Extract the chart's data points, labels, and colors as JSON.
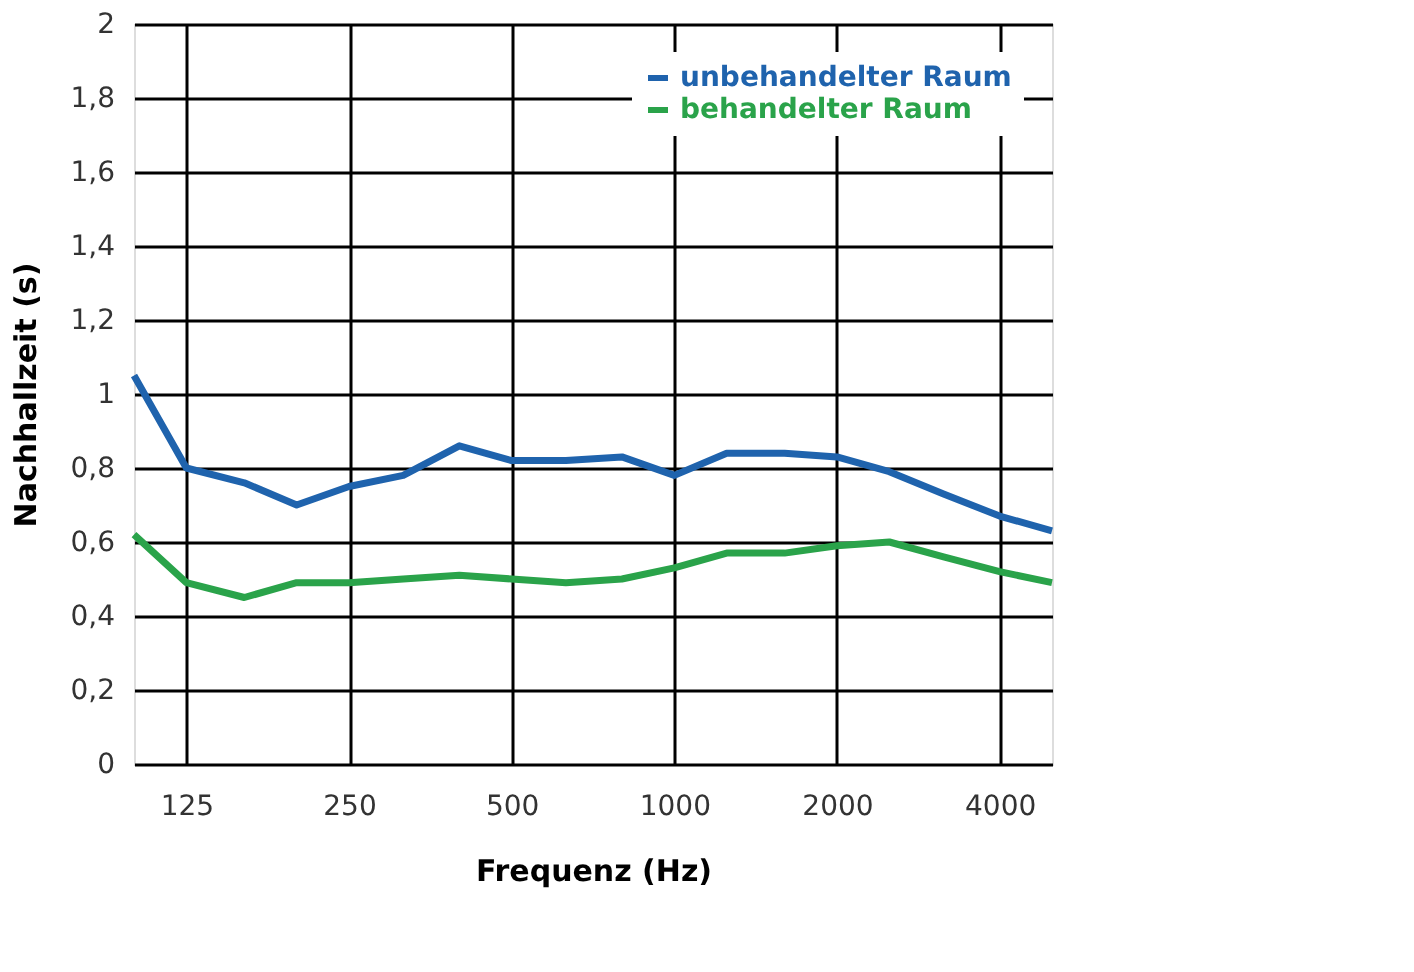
{
  "chart_data": {
    "type": "line",
    "xlabel": "Frequenz  (Hz)",
    "ylabel": "Nachhallzeit  (s)",
    "x": [
      100,
      125,
      160,
      200,
      250,
      315,
      400,
      500,
      630,
      800,
      1000,
      1250,
      1600,
      2000,
      2500,
      3150,
      4000,
      5000
    ],
    "series": [
      {
        "name": "unbehandelter Raum",
        "color": "#1f63ad",
        "values": [
          1.05,
          0.8,
          0.76,
          0.7,
          0.75,
          0.78,
          0.86,
          0.82,
          0.82,
          0.83,
          0.78,
          0.84,
          0.84,
          0.83,
          0.79,
          0.73,
          0.67,
          0.63
        ]
      },
      {
        "name": "behandelter Raum",
        "color": "#2aa34a",
        "values": [
          0.62,
          0.49,
          0.45,
          0.49,
          0.49,
          0.5,
          0.51,
          0.5,
          0.49,
          0.5,
          0.53,
          0.57,
          0.57,
          0.59,
          0.6,
          0.56,
          0.52,
          0.49
        ]
      }
    ],
    "log": "x",
    "xlim": [
      100,
      5000
    ],
    "xticks": [
      125,
      250,
      500,
      1000,
      2000,
      4000
    ],
    "ylim": [
      0,
      2
    ],
    "yticks": [
      0,
      {
        "value": 0.2,
        "label": "0,2"
      },
      {
        "value": 0.4,
        "label": "0,4"
      },
      {
        "value": 0.6,
        "label": "0,6"
      },
      {
        "value": 0.8,
        "label": "0,8"
      },
      1,
      {
        "value": 1.2,
        "label": "1,2"
      },
      {
        "value": 1.4,
        "label": "1,4"
      },
      {
        "value": 1.6,
        "label": "1,6"
      },
      {
        "value": 1.8,
        "label": "1,8"
      },
      2
    ],
    "grid": true,
    "legend": "top right",
    "marker": "none",
    "line_style": "solid"
  }
}
